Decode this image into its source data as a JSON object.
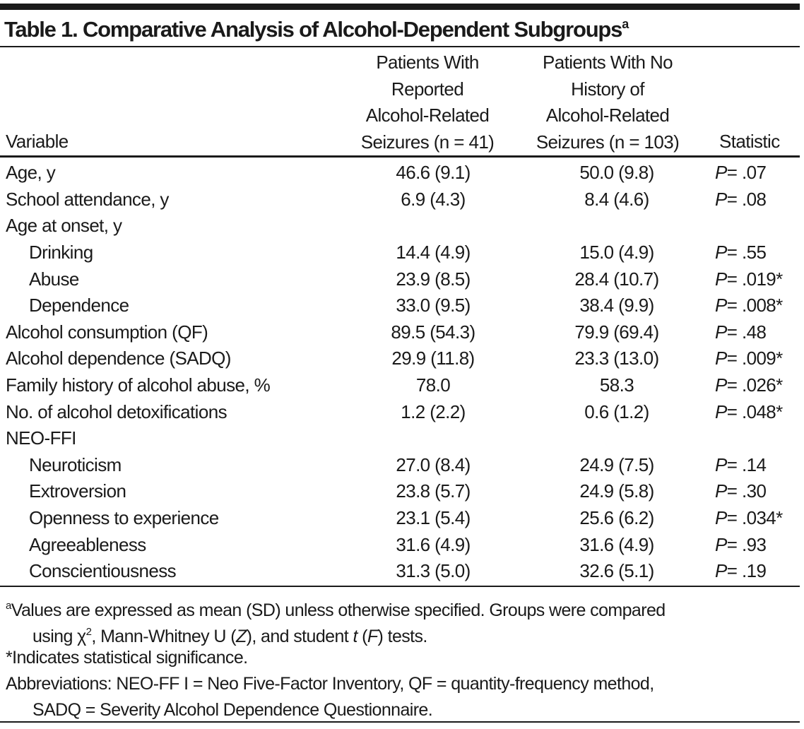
{
  "title": {
    "text": "Table 1. Comparative Analysis of Alcohol-Dependent Subgroups",
    "superscript": "a"
  },
  "headers": {
    "variable": "Variable",
    "group1": [
      "Patients With",
      "Reported",
      "Alcohol-Related",
      "Seizures (n = 41)"
    ],
    "group2": [
      "Patients With No",
      "History of",
      "Alcohol-Related",
      "Seizures (n = 103)"
    ],
    "statistic": "Statistic"
  },
  "rows": [
    {
      "label": "Age, y",
      "indent": false,
      "g1": "46.6 (9.1)",
      "g2": "50.0 (9.8)",
      "p": "= .07"
    },
    {
      "label": "School attendance, y",
      "indent": false,
      "g1": "6.9 (4.3)",
      "g2": "8.4 (4.6)",
      "p": "= .08"
    },
    {
      "label": "Age at onset, y",
      "indent": false,
      "g1": "",
      "g2": "",
      "p": ""
    },
    {
      "label": "Drinking",
      "indent": true,
      "g1": "14.4 (4.9)",
      "g2": "15.0 (4.9)",
      "p": "= .55"
    },
    {
      "label": "Abuse",
      "indent": true,
      "g1": "23.9 (8.5)",
      "g2": "28.4 (10.7)",
      "p": "= .019*"
    },
    {
      "label": "Dependence",
      "indent": true,
      "g1": "33.0 (9.5)",
      "g2": "38.4 (9.9)",
      "p": "= .008*"
    },
    {
      "label": "Alcohol consumption (QF)",
      "indent": false,
      "g1": "89.5 (54.3)",
      "g2": "79.9 (69.4)",
      "p": "= .48"
    },
    {
      "label": "Alcohol dependence (SADQ)",
      "indent": false,
      "g1": "29.9 (11.8)",
      "g2": "23.3 (13.0)",
      "p": "= .009*"
    },
    {
      "label": "Family history of alcohol abuse, %",
      "indent": false,
      "g1": "78.0",
      "g2": "58.3",
      "p": "= .026*"
    },
    {
      "label": "No. of alcohol detoxifications",
      "indent": false,
      "g1": "1.2 (2.2)",
      "g2": "0.6 (1.2)",
      "p": "= .048*"
    },
    {
      "label": "NEO-FFI",
      "indent": false,
      "g1": "",
      "g2": "",
      "p": ""
    },
    {
      "label": "Neuroticism",
      "indent": true,
      "g1": "27.0 (8.4)",
      "g2": "24.9 (7.5)",
      "p": "= .14"
    },
    {
      "label": "Extroversion",
      "indent": true,
      "g1": "23.8 (5.7)",
      "g2": "24.9 (5.8)",
      "p": "= .30"
    },
    {
      "label": "Openness to experience",
      "indent": true,
      "g1": "23.1 (5.4)",
      "g2": "25.6 (6.2)",
      "p": "= .034*"
    },
    {
      "label": "Agreeableness",
      "indent": true,
      "g1": "31.6 (4.9)",
      "g2": "31.6 (4.9)",
      "p": "= .93"
    },
    {
      "label": "Conscientiousness",
      "indent": true,
      "g1": "31.3 (5.0)",
      "g2": "32.6 (5.1)",
      "p": "= .19"
    }
  ],
  "p_symbol": "P",
  "footnotes": {
    "a_mark": "a",
    "a_line1": "Values are expressed as mean (SD) unless otherwise specified. Groups were compared",
    "a_line2_pre": "using χ",
    "a_line2_sup": "2",
    "a_line2_mid": ", Mann-Whitney U (",
    "a_line2_z": "Z",
    "a_line2_mid2": "), and student ",
    "a_line2_t": "t",
    "a_line2_mid3": " (",
    "a_line2_f": "F",
    "a_line2_end": ") tests.",
    "significance": "*Indicates statistical significance.",
    "abbrev_line1": "Abbreviations: NEO-FF I = Neo Five-Factor Inventory, QF = quantity-frequency method,",
    "abbrev_line2": "SADQ = Severity Alcohol Dependence Questionnaire."
  }
}
